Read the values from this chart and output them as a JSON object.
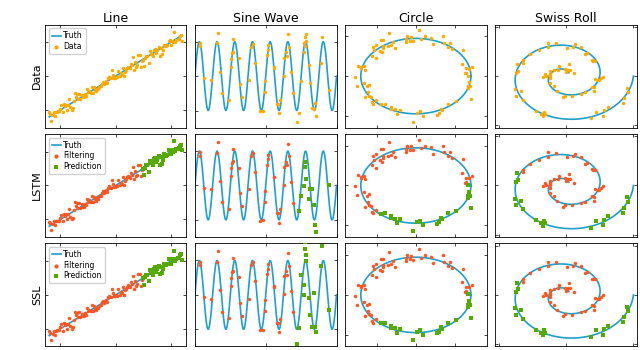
{
  "col_titles": [
    "Line",
    "Sine Wave",
    "Circle",
    "Swiss Roll"
  ],
  "row_labels": [
    "Data",
    "LSTM",
    "SSL"
  ],
  "truth_color": "#1f9fcc",
  "data_color": "#ffaa00",
  "filtering_color": "#ff5522",
  "prediction_color": "#55aa00",
  "truth_lw": 1.2,
  "marker_size": 2.5,
  "figsize": [
    6.4,
    3.5
  ],
  "dpi": 100,
  "sine_freq": 8,
  "n_sine_data": 60,
  "n_circ_data": 80,
  "n_swiss_data": 70
}
